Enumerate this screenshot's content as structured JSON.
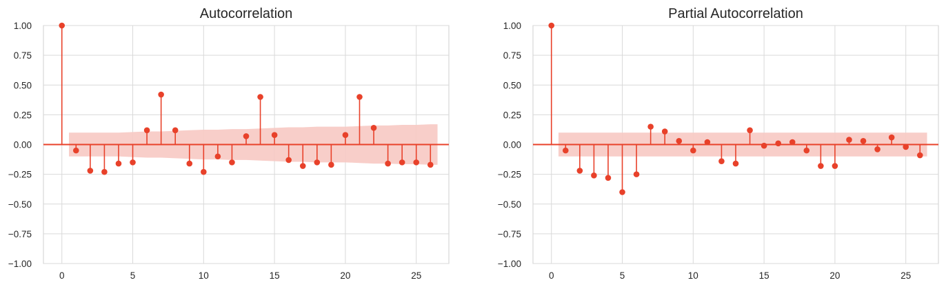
{
  "chart_data": [
    {
      "type": "stem",
      "title": "Autocorrelation",
      "xlabel": "",
      "ylabel": "",
      "xlim": [
        -1.3,
        27.3
      ],
      "ylim": [
        -1.0,
        1.0
      ],
      "xticks": [
        0,
        5,
        10,
        15,
        20,
        25
      ],
      "xtick_labels": [
        "0",
        "5",
        "10",
        "15",
        "20",
        "25"
      ],
      "yticks": [
        1.0,
        0.75,
        0.5,
        0.25,
        0.0,
        -0.25,
        -0.5,
        -0.75,
        -1.0
      ],
      "ytick_labels": [
        "1.00",
        "0.75",
        "0.50",
        "0.25",
        "0.00",
        "−0.25",
        "−0.50",
        "−0.75",
        "−1.00"
      ],
      "grid": true,
      "lags": [
        0,
        1,
        2,
        3,
        4,
        5,
        6,
        7,
        8,
        9,
        10,
        11,
        12,
        13,
        14,
        15,
        16,
        17,
        18,
        19,
        20,
        21,
        22,
        23,
        24,
        25,
        26
      ],
      "values": [
        1.0,
        -0.05,
        -0.22,
        -0.23,
        -0.16,
        -0.15,
        0.12,
        0.42,
        0.12,
        -0.16,
        -0.23,
        -0.1,
        -0.15,
        0.07,
        0.4,
        0.08,
        -0.13,
        -0.18,
        -0.15,
        -0.17,
        0.08,
        0.4,
        0.14,
        -0.16,
        -0.15,
        -0.15,
        -0.17
      ],
      "confidence_band": {
        "lags": [
          0.5,
          1,
          2,
          3,
          4,
          5,
          6,
          7,
          8,
          9,
          10,
          11,
          12,
          13,
          14,
          15,
          16,
          17,
          18,
          19,
          20,
          21,
          22,
          23,
          24,
          25,
          26,
          26.5
        ],
        "upper": [
          0.1,
          0.1,
          0.1,
          0.1,
          0.1,
          0.105,
          0.11,
          0.11,
          0.115,
          0.12,
          0.125,
          0.125,
          0.13,
          0.13,
          0.135,
          0.14,
          0.145,
          0.145,
          0.15,
          0.15,
          0.15,
          0.155,
          0.16,
          0.16,
          0.165,
          0.165,
          0.17,
          0.17
        ]
      },
      "colors": {
        "stem": "#e8412a",
        "band": "#f7c9c3",
        "grid": "#d9d9d9"
      }
    },
    {
      "type": "stem",
      "title": "Partial Autocorrelation",
      "xlabel": "",
      "ylabel": "",
      "xlim": [
        -1.3,
        27.3
      ],
      "ylim": [
        -1.0,
        1.0
      ],
      "xticks": [
        0,
        5,
        10,
        15,
        20,
        25
      ],
      "xtick_labels": [
        "0",
        "5",
        "10",
        "15",
        "20",
        "25"
      ],
      "yticks": [
        1.0,
        0.75,
        0.5,
        0.25,
        0.0,
        -0.25,
        -0.5,
        -0.75,
        -1.0
      ],
      "ytick_labels": [
        "1.00",
        "0.75",
        "0.50",
        "0.25",
        "0.00",
        "−0.25",
        "−0.50",
        "−0.75",
        "−1.00"
      ],
      "grid": true,
      "lags": [
        0,
        1,
        2,
        3,
        4,
        5,
        6,
        7,
        8,
        9,
        10,
        11,
        12,
        13,
        14,
        15,
        16,
        17,
        18,
        19,
        20,
        21,
        22,
        23,
        24,
        25,
        26
      ],
      "values": [
        1.0,
        -0.05,
        -0.22,
        -0.26,
        -0.28,
        -0.4,
        -0.25,
        0.15,
        0.11,
        0.03,
        -0.05,
        0.02,
        -0.14,
        -0.16,
        0.12,
        -0.01,
        0.01,
        0.02,
        -0.05,
        -0.18,
        -0.18,
        0.04,
        0.03,
        -0.04,
        0.06,
        -0.02,
        -0.09
      ],
      "confidence_band": {
        "lags": [
          0.5,
          26.5
        ],
        "upper": [
          0.1,
          0.1
        ]
      },
      "colors": {
        "stem": "#e8412a",
        "band": "#f7c9c3",
        "grid": "#d9d9d9"
      }
    }
  ]
}
